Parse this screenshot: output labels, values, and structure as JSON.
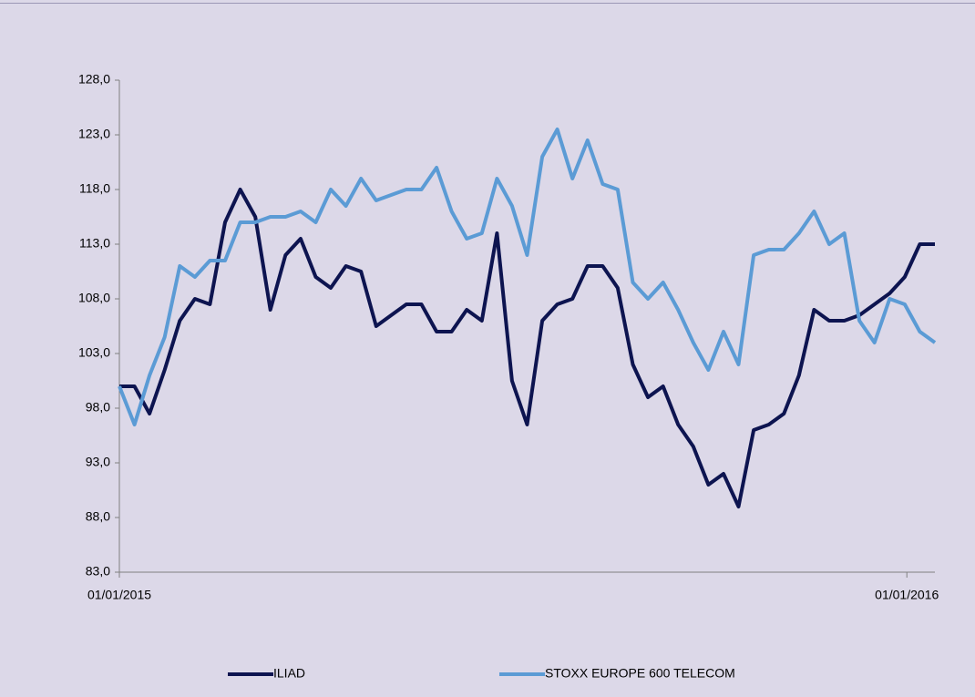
{
  "chart_data": {
    "type": "line",
    "x": [
      "01/01/2015",
      "08/01/2015",
      "15/01/2015",
      "22/01/2015",
      "29/01/2015",
      "05/02/2015",
      "12/02/2015",
      "19/02/2015",
      "26/02/2015",
      "05/03/2015",
      "12/03/2015",
      "19/03/2015",
      "26/03/2015",
      "02/04/2015",
      "09/04/2015",
      "16/04/2015",
      "23/04/2015",
      "30/04/2015",
      "07/05/2015",
      "14/05/2015",
      "21/05/2015",
      "28/05/2015",
      "04/06/2015",
      "11/06/2015",
      "18/06/2015",
      "25/06/2015",
      "02/07/2015",
      "09/07/2015",
      "16/07/2015",
      "23/07/2015",
      "30/07/2015",
      "06/08/2015",
      "13/08/2015",
      "20/08/2015",
      "27/08/2015",
      "03/09/2015",
      "10/09/2015",
      "17/09/2015",
      "24/09/2015",
      "01/10/2015",
      "08/10/2015",
      "15/10/2015",
      "22/10/2015",
      "29/10/2015",
      "05/11/2015",
      "12/11/2015",
      "19/11/2015",
      "26/11/2015",
      "03/12/2015",
      "10/12/2015",
      "17/12/2015",
      "24/12/2015",
      "31/12/2015",
      "07/01/2016",
      "14/01/2016"
    ],
    "series": [
      {
        "name": "ILIAD",
        "color": "#0d1450",
        "values": [
          100,
          100,
          97.5,
          101.5,
          106,
          108,
          107.5,
          115,
          118,
          115.5,
          107,
          112,
          113.5,
          110,
          109,
          111,
          110.5,
          105.5,
          106.5,
          107.5,
          107.5,
          105,
          105,
          107,
          106,
          114,
          100.5,
          96.5,
          106,
          107.5,
          108,
          111,
          111,
          109,
          102,
          99,
          100,
          96.5,
          94.5,
          91,
          92,
          89,
          96,
          96.5,
          97.5,
          101,
          107,
          106,
          106,
          106.5,
          107.5,
          108.5,
          110,
          113,
          113
        ]
      },
      {
        "name": "STOXX EUROPE 600 TELECOM",
        "color": "#5b9bd5",
        "values": [
          100,
          96.5,
          101,
          104.5,
          111,
          110,
          111.5,
          111.5,
          115,
          115,
          115.5,
          115.5,
          116,
          115,
          118,
          116.5,
          119,
          117,
          117.5,
          118,
          118,
          120,
          116,
          113.5,
          114,
          119,
          116.5,
          112,
          121,
          123.5,
          119,
          122.5,
          118.5,
          118,
          109.5,
          108,
          109.5,
          107,
          104,
          101.5,
          105,
          102,
          112,
          112.5,
          112.5,
          114,
          116,
          113,
          114,
          106,
          104,
          108,
          107.5,
          105,
          104
        ]
      }
    ],
    "xlim": [
      "01/01/2015",
      "14/01/2016"
    ],
    "xticks": [
      "01/01/2015",
      "01/01/2016"
    ],
    "ylim": [
      83,
      128
    ],
    "yticks": [
      {
        "value": 83,
        "label": "83,0"
      },
      {
        "value": 88,
        "label": "88,0"
      },
      {
        "value": 93,
        "label": "93,0"
      },
      {
        "value": 98,
        "label": "98,0"
      },
      {
        "value": 103,
        "label": "103,0"
      },
      {
        "value": 108,
        "label": "108,0"
      },
      {
        "value": 113,
        "label": "113,0"
      },
      {
        "value": 118,
        "label": "118,0"
      },
      {
        "value": 123,
        "label": "123,0"
      },
      {
        "value": 128,
        "label": "128,0"
      }
    ],
    "grid": false,
    "legend": "bottom"
  }
}
